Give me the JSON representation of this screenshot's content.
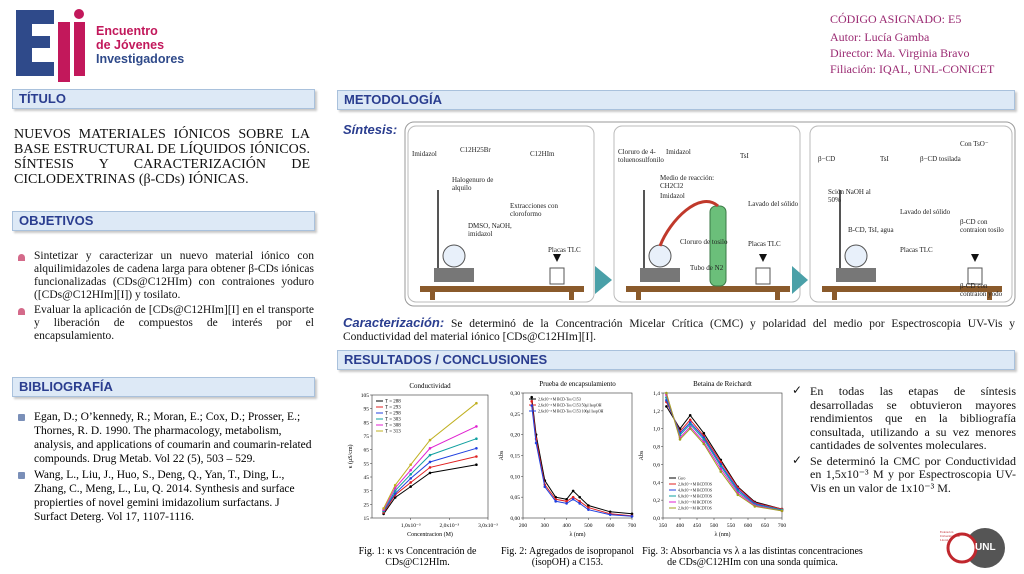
{
  "header": {
    "logo_lines": [
      "Encuentro",
      "de Jóvenes",
      "Investigadores"
    ]
  },
  "info": {
    "code": "CÓDIGO ASIGNADO: E5",
    "author": "Autor: Lucía Gamba",
    "director": "Director: Ma. Virginia Bravo",
    "affiliation": "Filiación: IQAL, UNL-CONICET"
  },
  "titulo": {
    "heading": "TÍTULO",
    "text": "NUEVOS MATERIALES IÓNICOS SOBRE LA BASE ESTRUCTURAL DE LÍQUIDOS IÓNICOS. SÍNTESIS Y CARACTERIZACIÓN DE CICLODEXTRINAS (β-CDs) IÓNICAS."
  },
  "objetivos": {
    "heading": "OBJETIVOS",
    "items": [
      "Sintetizar y caracterizar un nuevo material iónico con alquilimidazoles de cadena larga para obtener β-CDs iónicas funcionalizadas (CDs@C12HIm) con contraiones yoduro ([CDs@C12HIm][I]) y tosilato.",
      "Evaluar la aplicación de [CDs@C12HIm][I] en el transporte y liberación de compuestos de interés por el encapsulamiento."
    ]
  },
  "bibliografia": {
    "heading": "BIBLIOGRAFÍA",
    "items": [
      "Egan, D.; O’kennedy, R.; Moran, E.; Cox, D.; Prosser, E.; Thornes, R. D. 1990. The pharmacology, metabolism, analysis, and applications of coumarin and coumarin-related compounds. Drug Metab. Vol 22 (5), 503 – 529.",
      "Wang, L., Liu, J., Huo, S., Deng, Q., Yan, T., Ding, L., Zhang, C., Meng, L., Lu, Q. 2014. Synthesis and surface propierties of novel gemini imidazolium surfactans. J Surfact Deterg. Vol 17, 1107-1116."
    ]
  },
  "metodologia": {
    "heading": "METODOLOGÍA",
    "synthesis_label": "Síntesis:",
    "diagram": {
      "labels": [
        "Imidazol",
        "C12H25Br",
        "C12HIm",
        "Halogenuro de alquilo",
        "Extracciones con cloroformo",
        "DMSO, NaOH, imidazol",
        "Placas TLC",
        "Cloruro de 4-toluenosulfonilo",
        "Imidazol",
        "TsI",
        "Medio de reacción: CH2Cl2",
        "Imidazol",
        "Cloruro de tosilo",
        "Tubo de N2",
        "Lavado del sólido",
        "Placas TLC",
        "β−CD",
        "TsI",
        "β−CD tosilada",
        "Con TsO⁻",
        "Sción NaOH al 50%",
        "Lavado del sólido",
        "B-CD, TsI, agua",
        "Placas TLC",
        "β-CD con contraion tosilo",
        "β-CD con contraion yodo"
      ]
    },
    "characterization_label": "Caracterización:",
    "characterization_text": "Se determinó de la Concentración Micelar Crítica (CMC) y polaridad del medio por Espectroscopia UV-Vis y Conductividad del material iónico [CDs@C12HIm][I]."
  },
  "resultados": {
    "heading": "RESULTADOS / CONCLUSIONES",
    "conclusions": [
      "En todas las etapas de síntesis desarrolladas se obtuvieron mayores rendimientos que en la bibliografía consultada, utilizando a su vez menores cantidades de solventes moleculares.",
      "Se determinó la CMC por Conductividad en 1,5x10⁻³ M y por Espectroscopia UV-Vis en un valor de 1x10⁻³ M."
    ],
    "figures": [
      {
        "type": "line",
        "title": "Conductividad",
        "x_label": "Concentracion (M)",
        "y_label": "κ (μS/cm)",
        "caption": "Fig. 1: κ vs Concentración de CDs@C12HIm.",
        "x": [
          0.0003,
          0.0006,
          0.001,
          0.0015,
          0.0027
        ],
        "xlim": [
          0,
          0.003
        ],
        "xticks": [
          {
            "value": 0.001,
            "label": "1,0x10⁻³"
          },
          {
            "value": 0.002,
            "label": "2,0x10⁻³"
          },
          {
            "value": 0.003,
            "label": "3,0x10⁻³"
          }
        ],
        "ylim": [
          15,
          105
        ],
        "yticks": [
          15,
          25,
          35,
          45,
          55,
          65,
          75,
          85,
          95,
          105
        ],
        "series": [
          {
            "name": "T = 288",
            "color": "#000000",
            "values": [
              18,
              30,
              38,
              48,
              54
            ]
          },
          {
            "name": "T = 293",
            "color": "#e02020",
            "values": [
              19,
              32,
              41,
              52,
              60
            ]
          },
          {
            "name": "T = 298",
            "color": "#2040e0",
            "values": [
              20,
              33,
              44,
              56,
              66
            ]
          },
          {
            "name": "T = 303",
            "color": "#10a0a0",
            "values": [
              20,
              35,
              47,
              61,
              73
            ]
          },
          {
            "name": "T = 308",
            "color": "#e020d0",
            "values": [
              21,
              37,
              50,
              66,
              82
            ]
          },
          {
            "name": "T = 313",
            "color": "#c0b020",
            "values": [
              22,
              39,
              54,
              72,
              99
            ]
          }
        ]
      },
      {
        "type": "line",
        "title": "Prueba de encapsulamiento",
        "x_label": "λ (nm)",
        "y_label": "Abs",
        "caption": "Fig. 2: Agregados de isopropanol (isopOH) a C153.",
        "x": [
          240,
          260,
          300,
          350,
          400,
          430,
          460,
          500,
          600,
          700
        ],
        "xlim": [
          200,
          700
        ],
        "xticks": [
          200,
          300,
          400,
          500,
          600,
          700
        ],
        "ylim": [
          0,
          0.3
        ],
        "yticks": [
          {
            "value": 0,
            "label": "0,00"
          },
          {
            "value": 0.05,
            "label": "0,05"
          },
          {
            "value": 0.1,
            "label": "0,10"
          },
          {
            "value": 0.15,
            "label": "0,15"
          },
          {
            "value": 0.2,
            "label": "0,20"
          },
          {
            "value": 0.25,
            "label": "0,25"
          },
          {
            "value": 0.3,
            "label": "0,30"
          }
        ],
        "series": [
          {
            "name": "2,6x10⁻⁴ M BCD-Tos C153",
            "color": "#000000",
            "values": [
              0.29,
              0.2,
              0.09,
              0.05,
              0.045,
              0.065,
              0.05,
              0.03,
              0.015,
              0.01
            ]
          },
          {
            "name": "2,6x10⁻⁴ M BCD-Tos C153 50μl IsopOH",
            "color": "#e02020",
            "values": [
              0.28,
              0.19,
              0.08,
              0.045,
              0.04,
              0.05,
              0.04,
              0.025,
              0.01,
              0.005
            ]
          },
          {
            "name": "2,6x10⁻⁴ M BCD-Tos C153 100μl IsopOH",
            "color": "#2040e0",
            "values": [
              0.27,
              0.18,
              0.075,
              0.04,
              0.035,
              0.045,
              0.035,
              0.02,
              0.008,
              0.004
            ]
          }
        ]
      },
      {
        "type": "line",
        "title": "Betaina de Reichardt",
        "x_label": "λ (nm)",
        "y_label": "Abs",
        "caption": "Fig. 3: Absorbancia vs λ a las distintas concentraciones de CDs@C12HIm con una sonda química.",
        "x": [
          360,
          400,
          430,
          470,
          520,
          570,
          620,
          700
        ],
        "xlim": [
          350,
          700
        ],
        "xticks": [
          350,
          400,
          450,
          500,
          550,
          600,
          650,
          700
        ],
        "ylim": [
          0,
          1.4
        ],
        "yticks": [
          {
            "value": 0,
            "label": "0,0"
          },
          {
            "value": 0.2,
            "label": "0,2"
          },
          {
            "value": 0.4,
            "label": "0,4"
          },
          {
            "value": 0.6,
            "label": "0,6"
          },
          {
            "value": 0.8,
            "label": "0,8"
          },
          {
            "value": 1,
            "label": "1,0"
          },
          {
            "value": 1.2,
            "label": "1,2"
          },
          {
            "value": 1.4,
            "label": "1,4"
          }
        ],
        "series": [
          {
            "name": "Cero",
            "color": "#000000",
            "values": [
              1.25,
              1.0,
              1.15,
              0.95,
              0.65,
              0.35,
              0.18,
              0.1
            ]
          },
          {
            "name": "2,0x10⁻⁴ M BCDTOS",
            "color": "#e02020",
            "values": [
              1.3,
              0.97,
              1.1,
              0.92,
              0.63,
              0.34,
              0.17,
              0.1
            ]
          },
          {
            "name": "4,0x10⁻⁴ M BCDTOS",
            "color": "#2040e0",
            "values": [
              1.32,
              0.95,
              1.07,
              0.9,
              0.6,
              0.32,
              0.16,
              0.09
            ]
          },
          {
            "name": "6,0x10⁻⁴ M BCDTOS",
            "color": "#10a0a0",
            "values": [
              1.35,
              0.93,
              1.05,
              0.88,
              0.58,
              0.3,
              0.15,
              0.09
            ]
          },
          {
            "name": "1,0x10⁻³ M BCDTOS",
            "color": "#e020d0",
            "values": [
              1.38,
              0.9,
              1.02,
              0.85,
              0.55,
              0.28,
              0.14,
              0.08
            ]
          },
          {
            "name": "2,0x10⁻³ M BCDTOS",
            "color": "#a0a020",
            "values": [
              1.4,
              0.88,
              1.0,
              0.83,
              0.52,
              0.26,
              0.13,
              0.08
            ]
          }
        ]
      }
    ]
  },
  "footer": {
    "logo_unl": "UNL",
    "logo_fed": "Federación Universitaria del Litoral"
  }
}
